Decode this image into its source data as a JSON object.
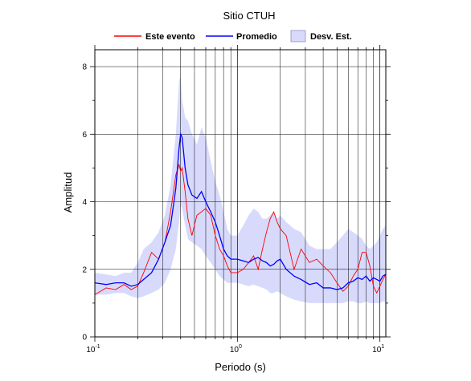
{
  "chart_data": {
    "type": "line",
    "title": "Sitio CTUH",
    "xlabel": "Periodo (s)",
    "ylabel": "Amplitud",
    "xscale": "log",
    "xlim": [
      0.1,
      11
    ],
    "ylim": [
      0,
      8.5
    ],
    "grid": true,
    "legend_placement": "top",
    "x_ticks": [
      {
        "base": "10",
        "exp": "-1",
        "value": 0.1
      },
      {
        "base": "10",
        "exp": "0",
        "value": 1
      },
      {
        "base": "10",
        "exp": "1",
        "value": 10
      }
    ],
    "y_ticks": [
      "0",
      "2",
      "4",
      "6",
      "8"
    ],
    "legend": {
      "event": "Este evento",
      "mean": "Promedio",
      "std": "Desv. Est."
    },
    "colors": {
      "event": "#ff0000",
      "mean": "#0000ff",
      "std_fill": "#d8dafc"
    },
    "x": [
      0.1,
      0.12,
      0.14,
      0.16,
      0.18,
      0.2,
      0.22,
      0.25,
      0.28,
      0.31,
      0.34,
      0.37,
      0.39,
      0.4,
      0.41,
      0.43,
      0.45,
      0.48,
      0.52,
      0.56,
      0.6,
      0.65,
      0.7,
      0.75,
      0.8,
      0.85,
      0.9,
      1.0,
      1.1,
      1.2,
      1.3,
      1.4,
      1.5,
      1.6,
      1.7,
      1.8,
      1.9,
      2.0,
      2.2,
      2.5,
      2.8,
      3.2,
      3.6,
      4.0,
      4.5,
      5.0,
      5.5,
      6.0,
      6.5,
      7.0,
      7.5,
      8.0,
      8.5,
      9.0,
      9.5,
      10.0,
      10.5,
      11.0
    ],
    "series": [
      {
        "name": "Este evento",
        "values": [
          1.25,
          1.45,
          1.4,
          1.55,
          1.4,
          1.5,
          1.9,
          2.5,
          2.3,
          2.8,
          3.7,
          4.8,
          5.1,
          4.9,
          5.0,
          4.3,
          3.5,
          3.0,
          3.6,
          3.7,
          3.8,
          3.6,
          3.0,
          2.6,
          2.4,
          2.1,
          1.9,
          1.9,
          2.0,
          2.2,
          2.4,
          2.0,
          2.6,
          3.1,
          3.5,
          3.7,
          3.4,
          3.2,
          3.0,
          2.0,
          2.6,
          2.2,
          2.3,
          2.1,
          1.9,
          1.6,
          1.35,
          1.5,
          1.8,
          2.0,
          2.5,
          2.5,
          2.1,
          1.5,
          1.3,
          1.5,
          1.7,
          1.85
        ]
      },
      {
        "name": "Promedio",
        "values": [
          1.6,
          1.55,
          1.6,
          1.6,
          1.5,
          1.55,
          1.7,
          1.9,
          2.3,
          2.8,
          3.3,
          4.4,
          5.6,
          6.0,
          5.9,
          5.0,
          4.5,
          4.2,
          4.1,
          4.3,
          4.0,
          3.7,
          3.4,
          3.0,
          2.6,
          2.4,
          2.3,
          2.3,
          2.25,
          2.2,
          2.3,
          2.35,
          2.25,
          2.2,
          2.1,
          2.15,
          2.25,
          2.3,
          2.0,
          1.8,
          1.7,
          1.55,
          1.6,
          1.45,
          1.45,
          1.4,
          1.45,
          1.6,
          1.65,
          1.75,
          1.7,
          1.8,
          1.65,
          1.75,
          1.7,
          1.65,
          1.8,
          1.85
        ]
      },
      {
        "name": "Desv. Est.",
        "upper": [
          1.9,
          1.85,
          1.8,
          1.9,
          1.9,
          2.2,
          2.6,
          2.8,
          3.1,
          3.6,
          4.5,
          6.0,
          7.6,
          7.7,
          7.0,
          6.5,
          6.4,
          6.0,
          5.7,
          6.2,
          5.9,
          5.2,
          4.6,
          4.2,
          3.7,
          3.2,
          3.0,
          3.0,
          3.3,
          3.6,
          3.8,
          3.7,
          3.5,
          3.5,
          3.6,
          3.7,
          3.5,
          3.6,
          3.4,
          3.2,
          3.1,
          2.7,
          2.6,
          2.6,
          2.6,
          2.8,
          3.0,
          3.2,
          3.1,
          3.0,
          2.9,
          2.7,
          2.6,
          2.7,
          2.8,
          3.0,
          3.2,
          3.3
        ]
      },
      {
        "name": "lower",
        "values": [
          1.25,
          1.25,
          1.3,
          1.3,
          1.2,
          1.15,
          1.2,
          1.3,
          1.4,
          1.6,
          2.0,
          2.6,
          3.4,
          3.9,
          3.8,
          3.3,
          2.9,
          2.8,
          2.7,
          2.6,
          2.4,
          2.2,
          2.0,
          1.8,
          1.7,
          1.6,
          1.6,
          1.6,
          1.55,
          1.5,
          1.55,
          1.5,
          1.45,
          1.4,
          1.3,
          1.3,
          1.35,
          1.3,
          1.2,
          1.1,
          1.05,
          1.0,
          1.0,
          1.0,
          1.0,
          1.0,
          1.0,
          1.05,
          1.05,
          1.0,
          1.0,
          1.05,
          1.0,
          1.0,
          1.0,
          1.0,
          1.05,
          1.05
        ]
      }
    ]
  }
}
